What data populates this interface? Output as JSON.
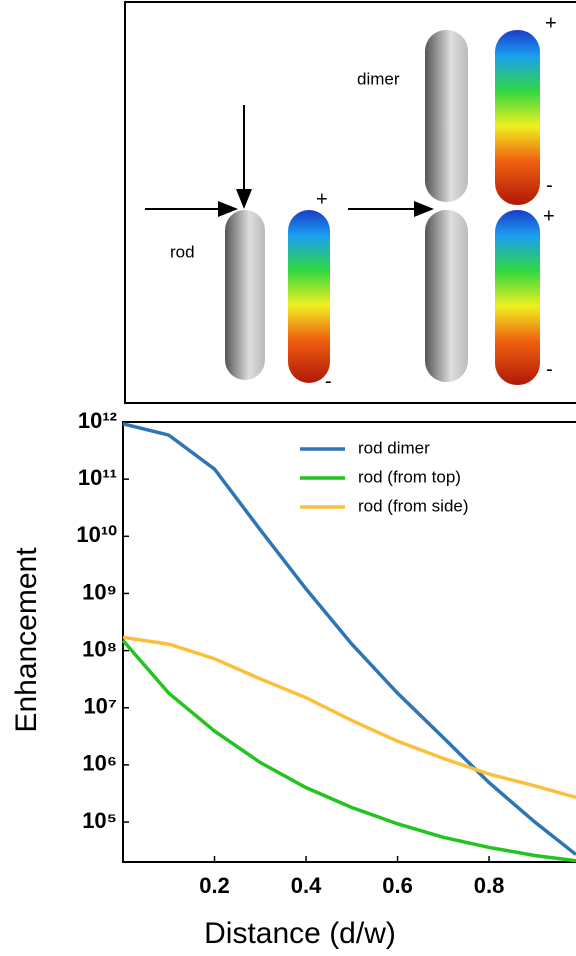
{
  "diagram": {
    "rod_label": "rod",
    "dimer_label": "dimer",
    "rod_plus": "+",
    "rod_minus": "-",
    "dimer_top_plus": "+",
    "dimer_top_minus": "-",
    "dimer_bottom_plus": "+",
    "dimer_bottom_minus": "-"
  },
  "chart_data": {
    "type": "line",
    "xlabel": "Distance (d/w)",
    "ylabel": "Enhancement",
    "x": [
      0,
      0.1,
      0.2,
      0.3,
      0.4,
      0.5,
      0.6,
      0.7,
      0.8,
      0.9,
      0.99
    ],
    "series": [
      {
        "name": "rod dimer",
        "color": "#2e75b6",
        "values": [
          930000000000,
          590000000000,
          150000000000,
          13000000000,
          1200000000,
          130000000,
          18000000,
          3000000,
          490000,
          100000,
          27000
        ]
      },
      {
        "name": "rod (from top)",
        "color": "#22c41e",
        "values": [
          150000000,
          18000000,
          3900000,
          1100000,
          400000,
          180000,
          93000,
          54000,
          36000,
          26000,
          21000
        ]
      },
      {
        "name": "rod (from side)",
        "color": "#fbbf3b",
        "values": [
          170000000,
          130000000,
          72000000,
          32000000,
          15000000,
          6000000,
          2600000,
          1300000,
          690000,
          430000,
          270000
        ]
      }
    ],
    "xlim": [
      0,
      0.99
    ],
    "ylim": [
      20000,
      1000000000000
    ],
    "log_y": true,
    "legend": "upper right",
    "xticks": [
      0.2,
      0.4,
      0.6,
      0.8
    ],
    "yticks": [
      {
        "value": 1000000000000,
        "label": "10¹²"
      },
      {
        "value": 100000000000,
        "label": "10¹¹"
      },
      {
        "value": 10000000000,
        "label": "10¹⁰"
      },
      {
        "value": 1000000000,
        "label": "10⁹"
      },
      {
        "value": 100000000,
        "label": "10⁸"
      },
      {
        "value": 10000000,
        "label": "10⁷"
      },
      {
        "value": 1000000,
        "label": "10⁶"
      },
      {
        "value": 100000,
        "label": "10⁵"
      }
    ]
  }
}
